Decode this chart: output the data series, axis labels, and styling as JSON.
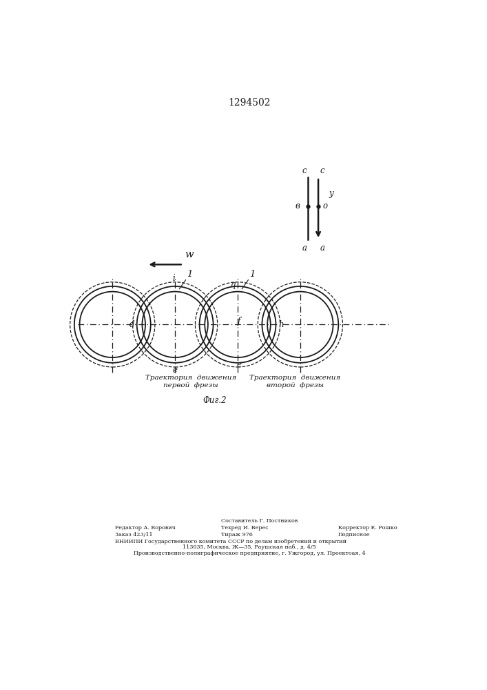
{
  "title": "1294502",
  "bg_color": "#ffffff",
  "line_color": "#1a1a1a",
  "label_traj1_line1": "Траектория  движения",
  "label_traj1_line2": "первой  фрезы",
  "label_traj2_line1": "Траектория  движения",
  "label_traj2_line2": "второй  фрезы",
  "fig2_label": "Фиг.2",
  "footer_col1_line1": "Редактор А. Ворович",
  "footer_col1_line2": "Заказ 423/11",
  "footer_col2_line1": "Составитель Г. Постников",
  "footer_col2_line2": "Техред И. Верес",
  "footer_col2_line3": "Тираж 976",
  "footer_col3_line1": "Корректор Е. Рошко",
  "footer_col3_line2": "Подписное",
  "footer_vniipis": "ВНИИПИ Государственного комитета СССР по делам изобретений и открытий",
  "footer_addr": "113035, Москва, Ж—35, Раушская наб., д. 4/5",
  "footer_prod": "Производственно-полиграфическое предприятие, г. Ужгород, ул. Проектоая, 4"
}
